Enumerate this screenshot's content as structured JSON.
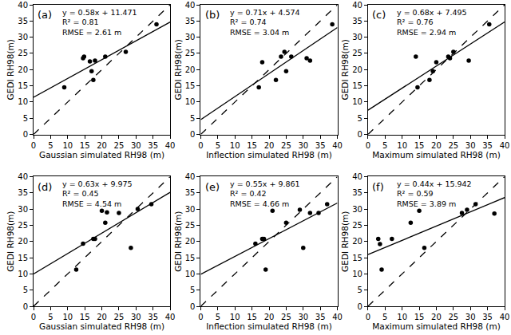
{
  "chart_data": [
    {
      "type": "scatter",
      "annotations": [
        "(a)",
        "y = 0.58x + 11.471",
        "R² = 0.81",
        "RMSE = 2.61 m"
      ],
      "x_label": "Gaussian simulated RH98 (m)",
      "y_label": "GEDI RH98(m)",
      "xlim": [
        0,
        40
      ],
      "ylim": [
        0,
        40
      ],
      "xticks": [
        0,
        5,
        10,
        15,
        20,
        25,
        30,
        35,
        40
      ],
      "yticks": [
        0,
        5,
        10,
        15,
        20,
        25,
        30,
        35,
        40
      ],
      "series": [
        {
          "type": "scatter",
          "marker": "circle",
          "color": "#000000",
          "x": [
            9,
            14.5,
            14.8,
            16.5,
            17,
            17.5,
            18,
            21,
            27,
            36
          ],
          "values": [
            14.5,
            23.5,
            24,
            22.5,
            19.5,
            16.8,
            22.8,
            24,
            25.5,
            34
          ]
        },
        {
          "type": "line",
          "line_style": "solid",
          "color": "#000000",
          "x": [
            0,
            40
          ],
          "values": [
            11.471,
            34.671
          ]
        },
        {
          "type": "line",
          "line_style": "dashed",
          "color": "#000000",
          "x": [
            0,
            40
          ],
          "values": [
            0,
            40
          ]
        }
      ]
    },
    {
      "type": "scatter",
      "annotations": [
        "(b)",
        "y = 0.71x + 4.574",
        "R² = 0.74",
        "RMSE = 3.04 m"
      ],
      "x_label": "Inflection simulated RH98 (m)",
      "y_label": "GEDI RH98(m)",
      "xlim": [
        0,
        40
      ],
      "ylim": [
        0,
        40
      ],
      "xticks": [
        0,
        5,
        10,
        15,
        20,
        25,
        30,
        35,
        40
      ],
      "yticks": [
        0,
        5,
        10,
        15,
        20,
        25,
        30,
        35,
        40
      ],
      "series": [
        {
          "type": "scatter",
          "marker": "circle",
          "color": "#000000",
          "x": [
            17,
            18,
            22,
            23.5,
            24.5,
            25,
            26.5,
            31,
            32,
            38.5
          ],
          "values": [
            14.5,
            22.3,
            16.8,
            24,
            25.5,
            19.5,
            24,
            23.5,
            22.8,
            34
          ]
        },
        {
          "type": "line",
          "line_style": "solid",
          "color": "#000000",
          "x": [
            0,
            40
          ],
          "values": [
            4.574,
            32.974
          ]
        },
        {
          "type": "line",
          "line_style": "dashed",
          "color": "#000000",
          "x": [
            0,
            40
          ],
          "values": [
            0,
            40
          ]
        }
      ]
    },
    {
      "type": "scatter",
      "annotations": [
        "(c)",
        "y = 0.68x + 7.495",
        "R² = 0.76",
        "RMSE = 2.94 m"
      ],
      "x_label": "Maximum simulated RH98 (m)",
      "y_label": "GEDI RH98(m)",
      "xlim": [
        0,
        40
      ],
      "ylim": [
        0,
        40
      ],
      "xticks": [
        0,
        5,
        10,
        15,
        20,
        25,
        30,
        35,
        40
      ],
      "yticks": [
        0,
        5,
        10,
        15,
        20,
        25,
        30,
        35,
        40
      ],
      "series": [
        {
          "type": "scatter",
          "marker": "circle",
          "color": "#000000",
          "x": [
            14,
            14.5,
            18,
            19,
            20,
            23.5,
            24,
            25,
            29.5,
            35.5
          ],
          "values": [
            24,
            14.5,
            16.8,
            19.5,
            22.3,
            24,
            23.5,
            25.5,
            22.8,
            34
          ]
        },
        {
          "type": "line",
          "line_style": "solid",
          "color": "#000000",
          "x": [
            0,
            40
          ],
          "values": [
            7.495,
            34.695
          ]
        },
        {
          "type": "line",
          "line_style": "dashed",
          "color": "#000000",
          "x": [
            0,
            40
          ],
          "values": [
            0,
            40
          ]
        }
      ]
    },
    {
      "type": "scatter",
      "annotations": [
        "(d)",
        "y = 0.63x + 9.975",
        "R² = 0.45",
        "RMSE = 4.54 m"
      ],
      "x_label": "Gaussian simulated RH98 (m)",
      "y_label": "GEDI RH98(m)",
      "xlim": [
        0,
        40
      ],
      "ylim": [
        0,
        40
      ],
      "xticks": [
        0,
        5,
        10,
        15,
        20,
        25,
        30,
        35,
        40
      ],
      "yticks": [
        0,
        5,
        10,
        15,
        20,
        25,
        30,
        35,
        40
      ],
      "series": [
        {
          "type": "scatter",
          "marker": "circle",
          "color": "#000000",
          "x": [
            12.5,
            14.5,
            17.5,
            18,
            20,
            21,
            21.5,
            25,
            28.5,
            30.5,
            34.5
          ],
          "values": [
            11.3,
            19.3,
            20.8,
            20.8,
            29.5,
            25.8,
            29,
            28.8,
            18,
            30,
            31.5
          ]
        },
        {
          "type": "line",
          "line_style": "solid",
          "color": "#000000",
          "x": [
            0,
            40
          ],
          "values": [
            9.975,
            35.175
          ]
        },
        {
          "type": "line",
          "line_style": "dashed",
          "color": "#000000",
          "x": [
            0,
            40
          ],
          "values": [
            0,
            40
          ]
        }
      ]
    },
    {
      "type": "scatter",
      "annotations": [
        "(e)",
        "y = 0.55x + 9.861",
        "R² = 0.42",
        "RMSE = 4.66 m"
      ],
      "x_label": "Inflection simulated RH98 (m)",
      "y_label": "GEDI RH98(m)",
      "xlim": [
        0,
        40
      ],
      "ylim": [
        0,
        40
      ],
      "xticks": [
        0,
        5,
        10,
        15,
        20,
        25,
        30,
        35,
        40
      ],
      "yticks": [
        0,
        5,
        10,
        15,
        20,
        25,
        30,
        35,
        40
      ],
      "series": [
        {
          "type": "scatter",
          "marker": "circle",
          "color": "#000000",
          "x": [
            16,
            18,
            18.5,
            19,
            21,
            25,
            29,
            30,
            32,
            34.5,
            37
          ],
          "values": [
            19.3,
            20.8,
            20.8,
            11.3,
            29.5,
            25.8,
            29.8,
            18,
            28.8,
            28.8,
            31.5
          ]
        },
        {
          "type": "line",
          "line_style": "solid",
          "color": "#000000",
          "x": [
            0,
            40
          ],
          "values": [
            9.861,
            31.861
          ]
        },
        {
          "type": "line",
          "line_style": "dashed",
          "color": "#000000",
          "x": [
            0,
            40
          ],
          "values": [
            0,
            40
          ]
        }
      ]
    },
    {
      "type": "scatter",
      "annotations": [
        "(f)",
        "y = 0.44x + 15.942",
        "R² = 0.59",
        "RMSE = 3.89 m"
      ],
      "x_label": "Maximum simulated RH98 (m)",
      "y_label": "GEDI RH98(m)",
      "xlim": [
        0,
        40
      ],
      "ylim": [
        0,
        40
      ],
      "xticks": [
        0,
        5,
        10,
        15,
        20,
        25,
        30,
        35,
        40
      ],
      "yticks": [
        0,
        5,
        10,
        15,
        20,
        25,
        30,
        35,
        40
      ],
      "series": [
        {
          "type": "scatter",
          "marker": "circle",
          "color": "#000000",
          "x": [
            3,
            3.5,
            4,
            7,
            12.5,
            15,
            16.5,
            27.5,
            29,
            31.5,
            37
          ],
          "values": [
            20.8,
            19.2,
            11.3,
            20.8,
            25.8,
            29.5,
            18,
            28.8,
            29.8,
            31.5,
            28.6
          ]
        },
        {
          "type": "line",
          "line_style": "solid",
          "color": "#000000",
          "x": [
            0,
            40
          ],
          "values": [
            15.942,
            33.542
          ]
        },
        {
          "type": "line",
          "line_style": "dashed",
          "color": "#000000",
          "x": [
            0,
            40
          ],
          "values": [
            0,
            40
          ]
        }
      ]
    }
  ]
}
